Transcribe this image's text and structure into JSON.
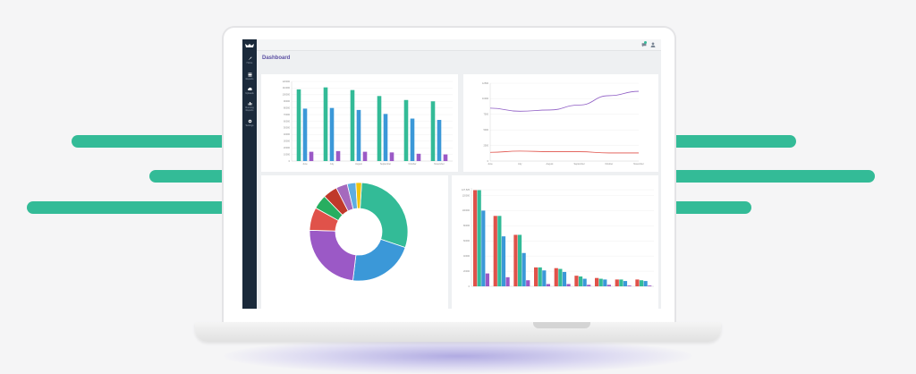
{
  "sidebar": {
    "items": [
      {
        "label": "Home",
        "icon": "rocket-icon"
      },
      {
        "label": "Reports",
        "icon": "grid-icon"
      },
      {
        "label": "Uploads",
        "icon": "cloud-upload-icon"
      },
      {
        "label": "Running Reports",
        "icon": "bar-chart-icon"
      },
      {
        "label": "Settings",
        "icon": "gear-icon"
      }
    ]
  },
  "header": {
    "title": "Dashboard"
  },
  "chart_data": [
    {
      "type": "bar",
      "categories": [
        "June",
        "July",
        "August",
        "September",
        "October",
        "November"
      ],
      "series": [
        {
          "values": [
            108000,
            111000,
            107000,
            98000,
            92000,
            90000
          ],
          "color": "#33bb97"
        },
        {
          "values": [
            79000,
            80000,
            77000,
            71000,
            64000,
            62000
          ],
          "color": "#3b98d8"
        },
        {
          "values": [
            14000,
            15000,
            14000,
            13000,
            11000,
            10000
          ],
          "color": "#9b59c6"
        }
      ],
      "y_ticks": [
        "0",
        "10000",
        "20000",
        "30000",
        "40000",
        "50000",
        "60000",
        "70000",
        "80000",
        "90000",
        "100000",
        "110000",
        "120000"
      ],
      "ylim": [
        0,
        120000
      ]
    },
    {
      "type": "line",
      "categories": [
        "June",
        "July",
        "August",
        "September",
        "October",
        "November"
      ],
      "series": [
        {
          "values": [
            8500,
            8000,
            8200,
            9000,
            10500,
            11200
          ],
          "color": "#8e5cc4"
        },
        {
          "values": [
            1400,
            1600,
            1500,
            1500,
            1300,
            1300
          ],
          "color": "#e0524a"
        }
      ],
      "y_ticks": [
        "0",
        "2500",
        "5000",
        "7500",
        "10000",
        "12500"
      ],
      "ylim": [
        0,
        12500
      ]
    },
    {
      "type": "pie",
      "values": [
        31,
        23,
        25,
        8,
        5,
        5,
        4,
        3,
        2
      ],
      "colors": [
        "#33bb97",
        "#3b98d8",
        "#9b59c6",
        "#e0524a",
        "#27ae60",
        "#c0392b",
        "#a569bd",
        "#5dade2",
        "#f1c40f"
      ]
    },
    {
      "type": "bar",
      "categories": [
        "",
        "",
        "",
        "",
        "",
        "",
        "",
        "",
        ""
      ],
      "series": [
        {
          "values": [
            127000,
            93000,
            68000,
            25000,
            24000,
            14000,
            11000,
            9000,
            9000
          ],
          "color": "#e0524a"
        },
        {
          "values": [
            127000,
            93000,
            68000,
            25000,
            23000,
            13000,
            10000,
            9000,
            8000
          ],
          "color": "#33bb97"
        },
        {
          "values": [
            100000,
            66000,
            44000,
            21000,
            19000,
            10000,
            9000,
            7000,
            7000
          ],
          "color": "#3b98d8"
        },
        {
          "values": [
            17000,
            12000,
            8000,
            3000,
            3000,
            2000,
            2000,
            1000,
            1000
          ],
          "color": "#9b59c6"
        }
      ],
      "y_ticks": [
        "0",
        "20000",
        "40000",
        "60000",
        "80000",
        "100000",
        "120000",
        "127,525"
      ],
      "ylim": [
        0,
        130000
      ]
    }
  ]
}
